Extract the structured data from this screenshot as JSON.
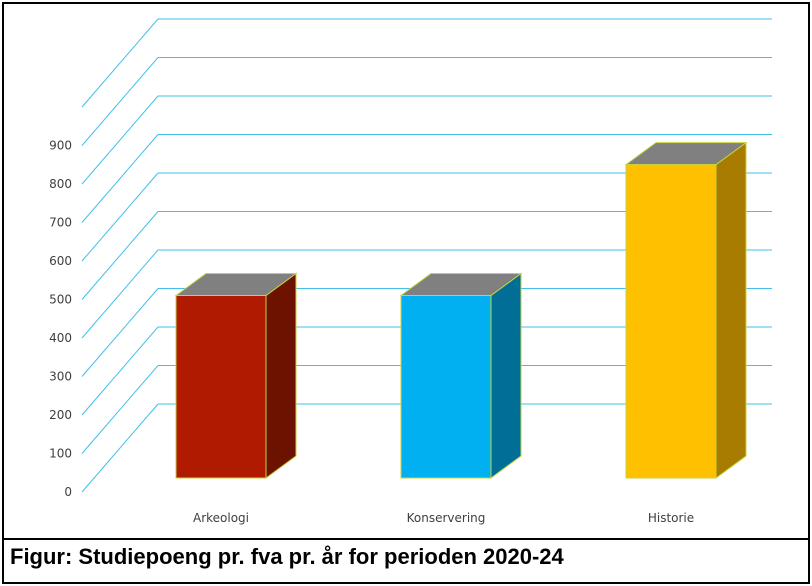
{
  "caption": "Figur: Studiepoeng pr. fva pr. år for perioden 2020-24",
  "chart_data": {
    "type": "bar",
    "title": "",
    "xlabel": "",
    "ylabel": "",
    "categories": [
      "Arkeologi",
      "Konservering",
      "Historie"
    ],
    "values": [
      500,
      500,
      840
    ],
    "ylim": [
      0,
      900
    ],
    "yticks": [
      0,
      100,
      200,
      300,
      400,
      500,
      600,
      700,
      800,
      900
    ],
    "grid": true,
    "legend": "none",
    "style": "3d-column",
    "colors": {
      "grid": "#40c0ea",
      "bar_top": "#808080",
      "bar_edge": "#c8d23c",
      "bars": [
        {
          "front": "#b01a00",
          "side": "#6e1200"
        },
        {
          "front": "#00b0f0",
          "side": "#006e96"
        },
        {
          "front": "#ffc000",
          "side": "#a87c00"
        }
      ]
    }
  }
}
